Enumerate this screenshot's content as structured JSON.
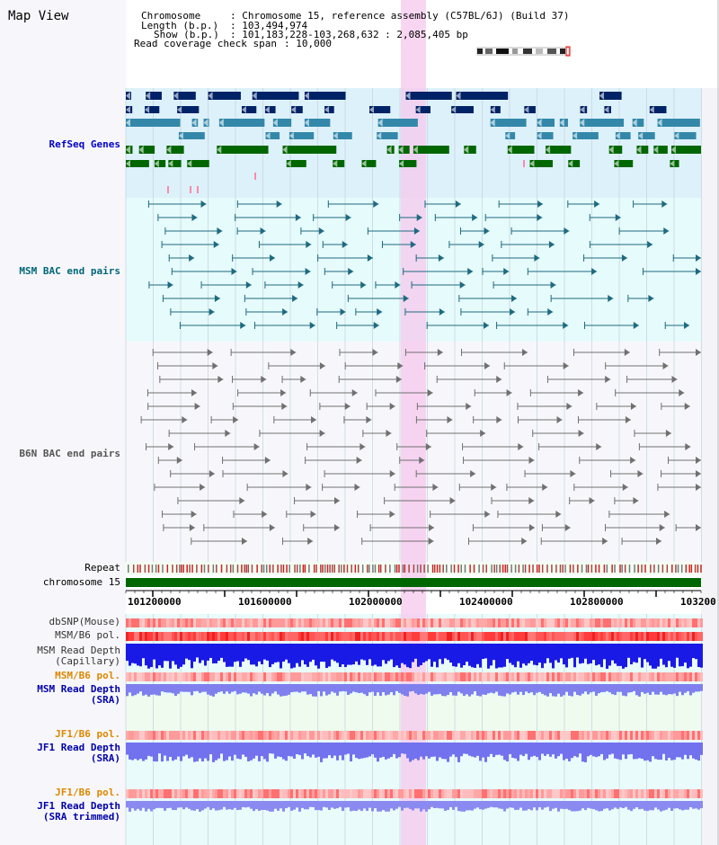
{
  "title": "Map View",
  "header": {
    "chromosome_label": "Chromosome",
    "chromosome_value": ": Chromosome 15, reference assembly (C57BL/6J) (Build 37)",
    "length_label": "Length (b.p.)",
    "length_value": ": 103,494,974",
    "show_label": "Show (b.p.)",
    "show_value": ": 101,183,228-103,268,632 : 2,085,405 bp",
    "coverage_label": "Read coverage check span",
    "coverage_value": ": 10,000"
  },
  "tracks": {
    "refseq": "RefSeq Genes",
    "msm_bac": "MSM BAC end pairs",
    "b6n_bac": "B6N BAC end pairs",
    "repeat": "Repeat",
    "chromosome": "chromosome 15",
    "dbsnp": "dbSNP(Mouse)",
    "msm_b6_pol": "MSM/B6 pol.",
    "msm_depth_cap_1": "MSM Read Depth",
    "msm_depth_cap_2": "(Capillary)",
    "msm_b6_pol2": "MSM/B6 pol.",
    "msm_depth_sra_1": "MSM Read Depth",
    "msm_depth_sra_2": "(SRA)",
    "jf1_b6_pol": "JF1/B6 pol.",
    "jf1_depth_sra_1": "JF1 Read Depth",
    "jf1_depth_sra_2": "(SRA)",
    "jf1_b6_pol2": "JF1/B6 pol.",
    "jf1_depth_trim_1": "JF1 Read Depth",
    "jf1_depth_trim_2": "(SRA trimmed)"
  },
  "ruler": {
    "ticks": [
      "101200000",
      "101600000",
      "102000000",
      "102400000",
      "102800000",
      "103200"
    ]
  },
  "colors": {
    "refseq_label": "#0000cc",
    "msm_label": "#006677",
    "b6n_label": "#555555",
    "pol_orange": "#dd8800",
    "depth_blue": "#0000aa",
    "highlight": "#f6c8ee",
    "gene_navy": "#002266",
    "gene_teal": "#3388aa",
    "gene_green": "#006600",
    "chromosome_green": "#006600"
  },
  "icons": {
    "ideogram": "chromosome-ideogram-icon"
  }
}
